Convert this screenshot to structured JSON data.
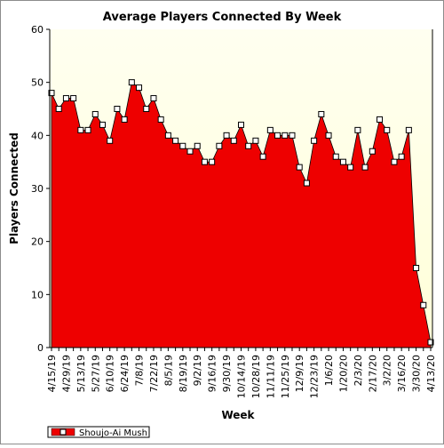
{
  "chart_data": {
    "type": "area",
    "title": "Average Players Connected By Week",
    "xlabel": "Week",
    "ylabel": "Players Connected",
    "ylim": [
      0,
      60
    ],
    "yticks": [
      0,
      10,
      20,
      30,
      40,
      50,
      60
    ],
    "grid": false,
    "legend_position": "bottom-left",
    "x": [
      "4/15/19",
      "4/22/19",
      "4/29/19",
      "5/6/19",
      "5/13/19",
      "5/20/19",
      "5/27/19",
      "6/3/19",
      "6/10/19",
      "6/17/19",
      "6/24/19",
      "7/1/19",
      "7/8/19",
      "7/15/19",
      "7/22/19",
      "7/29/19",
      "8/5/19",
      "8/12/19",
      "8/19/19",
      "8/26/19",
      "9/2/19",
      "9/9/19",
      "9/16/19",
      "9/23/19",
      "9/30/19",
      "10/7/19",
      "10/14/19",
      "10/21/19",
      "10/28/19",
      "11/4/19",
      "11/11/19",
      "11/18/19",
      "11/25/19",
      "12/2/19",
      "12/9/19",
      "12/16/19",
      "12/23/19",
      "12/30/19",
      "1/6/20",
      "1/13/20",
      "1/20/20",
      "1/27/20",
      "2/3/20",
      "2/10/20",
      "2/17/20",
      "2/24/20",
      "3/2/20",
      "3/9/20",
      "3/16/20",
      "3/23/20",
      "3/30/20",
      "4/6/20",
      "4/13/20"
    ],
    "xtick_labels": [
      "4/15/19",
      "4/29/19",
      "5/13/19",
      "5/27/19",
      "6/10/19",
      "6/24/19",
      "7/8/19",
      "7/22/19",
      "8/5/19",
      "8/19/19",
      "9/2/19",
      "9/16/19",
      "9/30/19",
      "10/14/19",
      "10/28/19",
      "11/11/19",
      "11/25/19",
      "12/9/19",
      "12/23/19",
      "1/6/20",
      "1/20/20",
      "2/3/20",
      "2/17/20",
      "3/2/20",
      "3/16/20",
      "3/30/20",
      "4/13/20"
    ],
    "series": [
      {
        "name": "Shoujo-Ai Mush",
        "color": "#ee0000",
        "values": [
          48,
          45,
          47,
          47,
          41,
          41,
          44,
          42,
          39,
          45,
          43,
          50,
          49,
          45,
          47,
          43,
          40,
          39,
          38,
          37,
          38,
          35,
          35,
          38,
          40,
          39,
          42,
          38,
          39,
          36,
          41,
          40,
          40,
          40,
          34,
          31,
          39,
          44,
          40,
          36,
          35,
          34,
          41,
          34,
          37,
          43,
          41,
          35,
          36,
          41,
          15,
          8,
          1
        ]
      }
    ],
    "colors": {
      "plot_background": "#ffffee",
      "area_fill": "#ee0000",
      "marker_fill": "#ffffff"
    }
  }
}
